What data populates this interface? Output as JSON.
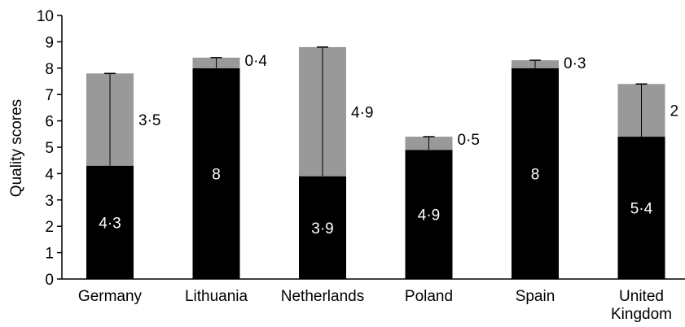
{
  "chart_data": {
    "type": "bar",
    "stacked": true,
    "ylabel": "Quality scores",
    "ylim": [
      0,
      10
    ],
    "yticks": [
      0,
      1,
      2,
      3,
      4,
      5,
      6,
      7,
      8,
      9,
      10
    ],
    "grid": false,
    "categories": [
      {
        "lines": [
          "Germany"
        ]
      },
      {
        "lines": [
          "Lithuania"
        ]
      },
      {
        "lines": [
          "Netherlands"
        ]
      },
      {
        "lines": [
          "Poland"
        ]
      },
      {
        "lines": [
          "Spain"
        ]
      },
      {
        "lines": [
          "United",
          "Kingdom"
        ]
      }
    ],
    "series": [
      {
        "color": "#000000",
        "values": [
          4.3,
          8,
          3.9,
          4.9,
          8,
          5.4
        ],
        "labels": [
          "4·3",
          "8",
          "3·9",
          "4·9",
          "8",
          "5·4"
        ]
      },
      {
        "color": "#999999",
        "values": [
          3.5,
          0.4,
          4.9,
          0.5,
          0.3,
          2
        ],
        "labels": [
          "3·5",
          "0·4",
          "4·9",
          "0·5",
          "0·3",
          "2"
        ]
      }
    ]
  }
}
